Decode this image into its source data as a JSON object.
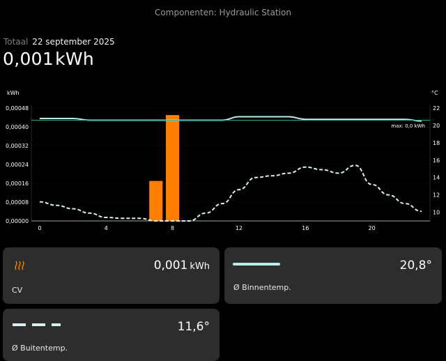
{
  "header": {
    "title": "Componenten: Hydraulic Station"
  },
  "summary": {
    "period_label": "Totaal",
    "date": "22 september 2025",
    "total_value": "0,001",
    "total_unit": "kWh"
  },
  "chart_data": {
    "type": "bar",
    "left_axis_label": "kWh",
    "right_axis_label": "°C",
    "left_ticks": [
      "0,00048",
      "0,00040",
      "0,00032",
      "0,00024",
      "0,00016",
      "0,00008",
      "0,00000"
    ],
    "right_ticks": [
      "22",
      "20",
      "18",
      "16",
      "14",
      "12",
      "10"
    ],
    "x_ticks": [
      "0",
      "4",
      "8",
      "12",
      "16",
      "20"
    ],
    "ylim_left": [
      0,
      0.00048
    ],
    "ylim_right": [
      9,
      22
    ],
    "xlim": [
      -0.5,
      23.5
    ],
    "max_annotation": "max: 0,0 kWh",
    "colors": {
      "energy": "#ff8000",
      "indoor": "#b7ede4",
      "outdoor": "#d9f1ec",
      "grid": "#1f3a36"
    },
    "series": [
      {
        "name": "CV",
        "kind": "bar",
        "x": [
          7,
          8
        ],
        "values": [
          0.00017,
          0.00045
        ]
      },
      {
        "name": "Ø Binnentemp.",
        "kind": "line",
        "x": [
          0,
          1,
          2,
          3,
          4,
          5,
          6,
          7,
          8,
          9,
          10,
          11,
          12,
          13,
          14,
          15,
          16,
          17,
          18,
          19,
          20,
          21,
          22,
          23
        ],
        "values": [
          20.8,
          20.8,
          20.8,
          20.6,
          20.6,
          20.6,
          20.6,
          20.6,
          20.6,
          20.6,
          20.6,
          20.6,
          21.0,
          21.0,
          21.0,
          21.0,
          20.7,
          20.7,
          20.7,
          20.7,
          20.7,
          20.7,
          20.7,
          20.5
        ]
      },
      {
        "name": "Ø Buitentemp.",
        "kind": "line",
        "x": [
          0,
          1,
          2,
          3,
          4,
          5,
          6,
          7,
          8,
          9,
          10,
          11,
          12,
          13,
          14,
          15,
          16,
          17,
          18,
          19,
          20,
          21,
          22,
          23
        ],
        "values": [
          11.2,
          10.8,
          10.4,
          9.9,
          9.4,
          9.3,
          9.3,
          9.0,
          9.0,
          9.0,
          9.9,
          11.0,
          12.6,
          14.0,
          14.2,
          14.5,
          15.2,
          14.9,
          14.5,
          15.4,
          13.2,
          12.0,
          11.0,
          10.1
        ]
      }
    ]
  },
  "cards": [
    {
      "label": "CV",
      "value": "0,001",
      "unit": "kWh",
      "icon": "heating-icon"
    },
    {
      "label": "Ø Binnentemp.",
      "value": "20,8°",
      "icon": "solid-line-legend-icon"
    },
    {
      "label": "Ø Buitentemp.",
      "value": "11,6°",
      "icon": "dashed-line-legend-icon"
    }
  ]
}
